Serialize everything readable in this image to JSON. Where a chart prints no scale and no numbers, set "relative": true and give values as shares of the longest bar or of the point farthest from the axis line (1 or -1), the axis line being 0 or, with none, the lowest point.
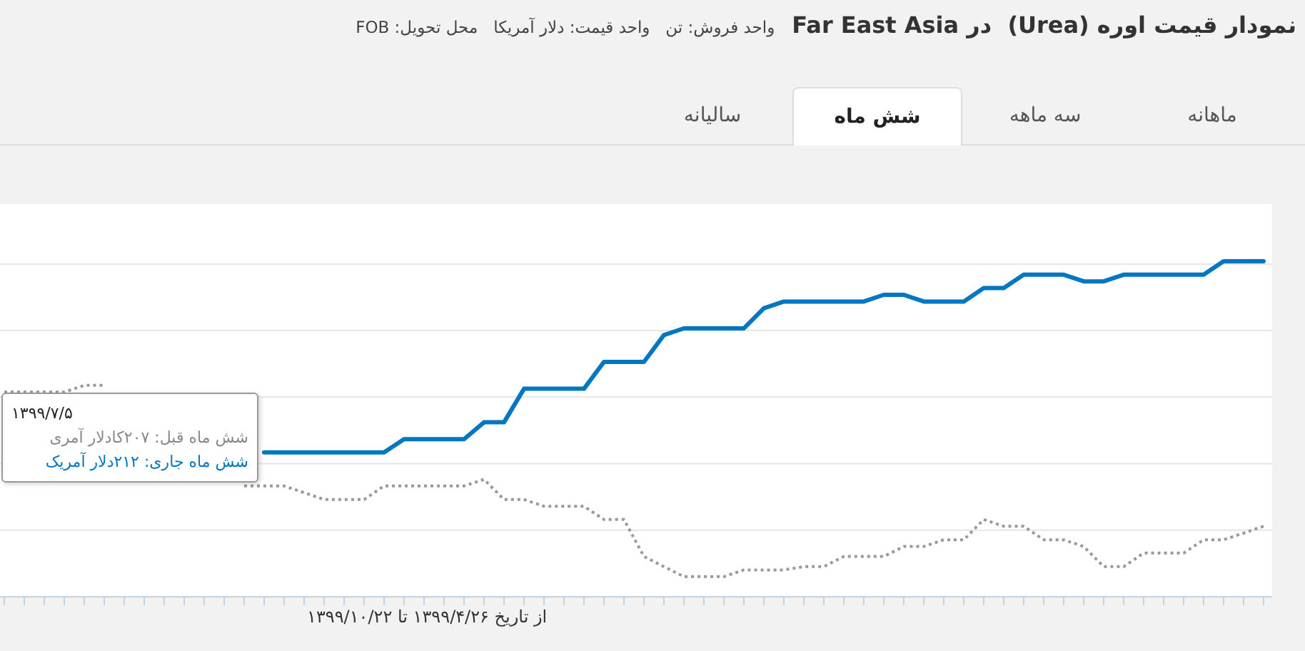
{
  "chart_data": {
    "type": "line",
    "title": "نمودار قیمت اوره (Urea)  در Far East Asia",
    "subtitle": "واحد فروش: تن   واحد قیمت: دلار آمریکا   محل تحویل: FOB",
    "xlabel": "از تاریخ ۱۳۹۹/۴/۲۶ تا ۱۳۹۹/۱۰/۲۲",
    "annotations": [
      "ماهانه",
      "سه ماهه",
      "شش ماه",
      "ساليانه",
      "۱۳۹۹/۷/۵",
      "شش ماه قبل: ۲۰۷کادلار آمری",
      "شش ماه جاری: ۲۱۲دلار آمریک"
    ],
    "relative": true,
    "grid": "y",
    "categories": [
      null,
      null,
      null,
      null,
      null,
      null,
      null,
      null,
      null,
      null,
      null,
      null,
      null,
      null,
      null,
      null,
      null,
      null,
      null,
      null,
      null,
      null,
      null,
      null,
      null,
      null,
      null,
      null,
      null,
      null,
      null,
      null,
      null,
      null,
      null,
      null,
      null,
      null,
      null,
      null,
      null,
      null,
      null,
      null,
      null,
      null,
      null,
      null,
      null,
      null,
      null,
      null,
      null,
      null,
      null,
      null,
      null,
      null,
      null,
      null,
      null,
      null,
      null,
      null
    ],
    "series": [
      {
        "color": "#0077c0",
        "line_style": "solid",
        "values": [
          null,
          null,
          null,
          null,
          null,
          null,
          null,
          null,
          null,
          null,
          null,
          null,
          null,
          0.43,
          0.43,
          0.43,
          0.43,
          0.43,
          0.43,
          0.43,
          0.47,
          0.47,
          0.47,
          0.47,
          0.52,
          0.52,
          0.62,
          0.62,
          0.62,
          0.62,
          0.7,
          0.7,
          0.7,
          0.78,
          0.8,
          0.8,
          0.8,
          0.8,
          0.86,
          0.88,
          0.88,
          0.88,
          0.88,
          0.88,
          0.9,
          0.9,
          0.88,
          0.88,
          0.88,
          0.92,
          0.92,
          0.96,
          0.96,
          0.96,
          0.94,
          0.94,
          0.96,
          0.96,
          0.96,
          0.96,
          0.96,
          1.0,
          1.0,
          1.0
        ]
      },
      {
        "color": "#999999",
        "line_style": "dotted",
        "values": [
          0.61,
          0.61,
          0.61,
          0.61,
          0.63,
          0.63,
          null,
          null,
          null,
          null,
          null,
          null,
          0.33,
          0.33,
          0.33,
          0.31,
          0.29,
          0.29,
          0.29,
          0.33,
          0.33,
          0.33,
          0.33,
          0.33,
          0.35,
          0.29,
          0.29,
          0.27,
          0.27,
          0.27,
          0.23,
          0.23,
          0.12,
          0.09,
          0.06,
          0.06,
          0.06,
          0.08,
          0.08,
          0.08,
          0.09,
          0.09,
          0.12,
          0.12,
          0.12,
          0.15,
          0.15,
          0.17,
          0.17,
          0.23,
          0.21,
          0.21,
          0.17,
          0.17,
          0.15,
          0.09,
          0.09,
          0.13,
          0.13,
          0.13,
          0.17,
          0.17,
          0.19,
          0.21
        ]
      }
    ]
  }
}
